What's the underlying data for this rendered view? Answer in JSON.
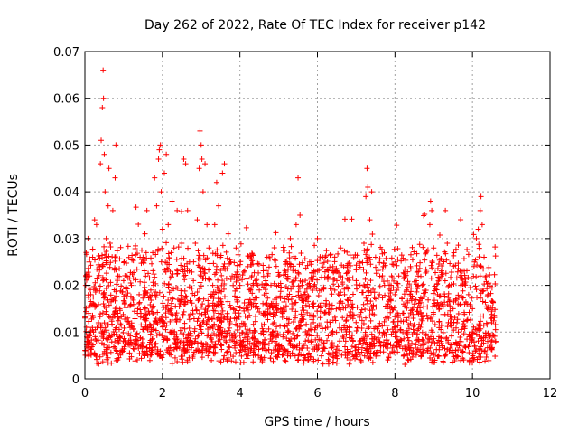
{
  "chart_data": {
    "type": "scatter",
    "title": "Day 262 of 2022, Rate Of TEC Index for receiver p142",
    "xlabel": "GPS time / hours",
    "ylabel": "ROTI / TECUs",
    "xlim": [
      0,
      12
    ],
    "ylim": [
      0,
      0.07
    ],
    "x_ticks": [
      0,
      2,
      4,
      6,
      8,
      10,
      12
    ],
    "x_tick_labels": [
      "0",
      "2",
      "4",
      "6",
      "8",
      "10",
      "12"
    ],
    "y_ticks": [
      0,
      0.01,
      0.02,
      0.03,
      0.04,
      0.05,
      0.06,
      0.07
    ],
    "y_tick_labels": [
      "0",
      "0.01",
      "0.02",
      "0.03",
      "0.04",
      "0.05",
      "0.06",
      "0.07"
    ],
    "grid": true,
    "marker": "+",
    "series_color": "#ff0000",
    "data_x_range": [
      0.0,
      10.6
    ],
    "typical_range": [
      0.003,
      0.025
    ],
    "points": [
      [
        0.0,
        0.013
      ],
      [
        0.02,
        0.02
      ],
      [
        0.05,
        0.008
      ],
      [
        0.08,
        0.03
      ],
      [
        0.1,
        0.014
      ],
      [
        0.12,
        0.022
      ],
      [
        0.15,
        0.018
      ],
      [
        0.2,
        0.026
      ],
      [
        0.22,
        0.01
      ],
      [
        0.25,
        0.034
      ],
      [
        0.28,
        0.019
      ],
      [
        0.3,
        0.033
      ],
      [
        0.35,
        0.012
      ],
      [
        0.38,
        0.024
      ],
      [
        0.4,
        0.046
      ],
      [
        0.42,
        0.051
      ],
      [
        0.45,
        0.058
      ],
      [
        0.47,
        0.066
      ],
      [
        0.48,
        0.06
      ],
      [
        0.5,
        0.048
      ],
      [
        0.52,
        0.04
      ],
      [
        0.55,
        0.03
      ],
      [
        0.6,
        0.037
      ],
      [
        0.62,
        0.045
      ],
      [
        0.65,
        0.029
      ],
      [
        0.7,
        0.017
      ],
      [
        0.72,
        0.036
      ],
      [
        0.78,
        0.043
      ],
      [
        0.8,
        0.05
      ],
      [
        0.85,
        0.022
      ],
      [
        0.9,
        0.015
      ],
      [
        1.0,
        0.021
      ],
      [
        1.1,
        0.013
      ],
      [
        1.2,
        0.02
      ],
      [
        1.3,
        0.009
      ],
      [
        1.4,
        0.018
      ],
      [
        1.5,
        0.026
      ],
      [
        1.55,
        0.031
      ],
      [
        1.6,
        0.036
      ],
      [
        1.7,
        0.019
      ],
      [
        1.75,
        0.027
      ],
      [
        1.8,
        0.043
      ],
      [
        1.85,
        0.037
      ],
      [
        1.9,
        0.047
      ],
      [
        1.92,
        0.049
      ],
      [
        1.95,
        0.05
      ],
      [
        1.97,
        0.04
      ],
      [
        2.0,
        0.032
      ],
      [
        2.05,
        0.044
      ],
      [
        2.1,
        0.048
      ],
      [
        2.15,
        0.033
      ],
      [
        2.2,
        0.023
      ],
      [
        2.25,
        0.038
      ],
      [
        2.3,
        0.028
      ],
      [
        2.4,
        0.017
      ],
      [
        2.5,
        0.029
      ],
      [
        2.55,
        0.047
      ],
      [
        2.6,
        0.046
      ],
      [
        2.65,
        0.036
      ],
      [
        2.7,
        0.025
      ],
      [
        2.8,
        0.021
      ],
      [
        2.85,
        0.029
      ],
      [
        2.9,
        0.034
      ],
      [
        2.95,
        0.045
      ],
      [
        2.97,
        0.053
      ],
      [
        3.0,
        0.05
      ],
      [
        3.02,
        0.047
      ],
      [
        3.05,
        0.04
      ],
      [
        3.1,
        0.046
      ],
      [
        3.15,
        0.033
      ],
      [
        3.2,
        0.028
      ],
      [
        3.3,
        0.02
      ],
      [
        3.35,
        0.033
      ],
      [
        3.4,
        0.042
      ],
      [
        3.45,
        0.037
      ],
      [
        3.5,
        0.026
      ],
      [
        3.55,
        0.044
      ],
      [
        3.6,
        0.046
      ],
      [
        3.7,
        0.031
      ],
      [
        3.75,
        0.025
      ],
      [
        3.8,
        0.022
      ],
      [
        3.9,
        0.028
      ],
      [
        4.0,
        0.02
      ],
      [
        4.1,
        0.015
      ],
      [
        4.2,
        0.024
      ],
      [
        4.3,
        0.016
      ],
      [
        4.4,
        0.021
      ],
      [
        4.5,
        0.019
      ],
      [
        4.6,
        0.014
      ],
      [
        4.7,
        0.026
      ],
      [
        4.8,
        0.02
      ],
      [
        4.9,
        0.017
      ],
      [
        5.0,
        0.022
      ],
      [
        5.1,
        0.014
      ],
      [
        5.2,
        0.025
      ],
      [
        5.3,
        0.03
      ],
      [
        5.4,
        0.021
      ],
      [
        5.45,
        0.033
      ],
      [
        5.5,
        0.043
      ],
      [
        5.55,
        0.035
      ],
      [
        5.6,
        0.02
      ],
      [
        5.7,
        0.017
      ],
      [
        5.8,
        0.025
      ],
      [
        5.9,
        0.022
      ],
      [
        6.0,
        0.03
      ],
      [
        6.1,
        0.019
      ],
      [
        6.2,
        0.026
      ],
      [
        6.3,
        0.016
      ],
      [
        6.4,
        0.024
      ],
      [
        6.5,
        0.021
      ],
      [
        6.6,
        0.028
      ],
      [
        6.7,
        0.018
      ],
      [
        6.8,
        0.023
      ],
      [
        6.9,
        0.016
      ],
      [
        7.0,
        0.021
      ],
      [
        7.1,
        0.02
      ],
      [
        7.2,
        0.029
      ],
      [
        7.25,
        0.039
      ],
      [
        7.28,
        0.045
      ],
      [
        7.3,
        0.041
      ],
      [
        7.35,
        0.034
      ],
      [
        7.4,
        0.04
      ],
      [
        7.5,
        0.026
      ],
      [
        7.6,
        0.018
      ],
      [
        7.7,
        0.024
      ],
      [
        7.8,
        0.015
      ],
      [
        7.9,
        0.02
      ],
      [
        8.0,
        0.018
      ],
      [
        8.1,
        0.022
      ],
      [
        8.2,
        0.014
      ],
      [
        8.3,
        0.019
      ],
      [
        8.4,
        0.024
      ],
      [
        8.5,
        0.016
      ],
      [
        8.6,
        0.022
      ],
      [
        8.7,
        0.02
      ],
      [
        8.8,
        0.027
      ],
      [
        8.9,
        0.033
      ],
      [
        8.92,
        0.038
      ],
      [
        8.95,
        0.036
      ],
      [
        9.0,
        0.028
      ],
      [
        9.1,
        0.018
      ],
      [
        9.2,
        0.022
      ],
      [
        9.3,
        0.036
      ],
      [
        9.35,
        0.029
      ],
      [
        9.4,
        0.02
      ],
      [
        9.5,
        0.015
      ],
      [
        9.6,
        0.012
      ],
      [
        9.7,
        0.02
      ],
      [
        9.8,
        0.016
      ],
      [
        9.9,
        0.018
      ],
      [
        10.0,
        0.015
      ],
      [
        10.05,
        0.025
      ],
      [
        10.1,
        0.03
      ],
      [
        10.15,
        0.032
      ],
      [
        10.2,
        0.036
      ],
      [
        10.22,
        0.039
      ],
      [
        10.25,
        0.033
      ],
      [
        10.3,
        0.026
      ],
      [
        10.35,
        0.022
      ],
      [
        10.4,
        0.018
      ],
      [
        10.5,
        0.013
      ],
      [
        10.6,
        0.008
      ]
    ]
  }
}
